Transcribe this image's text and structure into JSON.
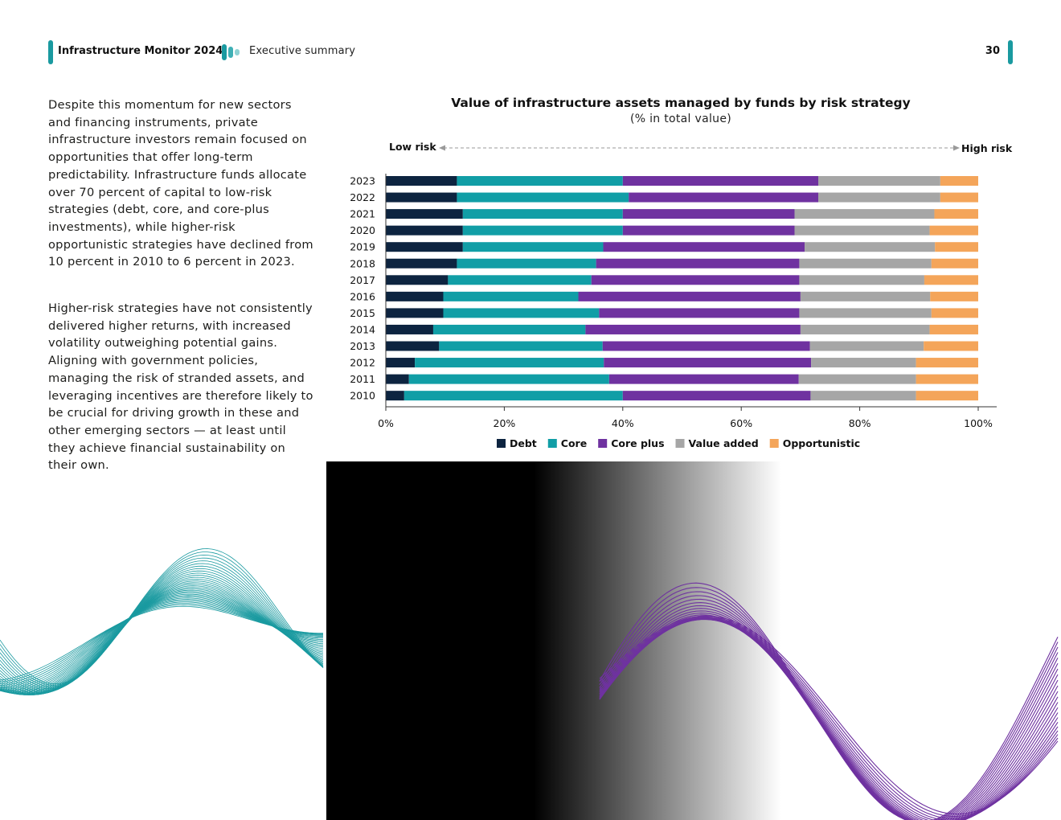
{
  "header": {
    "title": "Infrastructure Monitor 2024",
    "section": "Executive summary",
    "page_number": "30"
  },
  "body": {
    "paragraph1": "Despite this momentum for new sectors and financing instruments, private infrastructure investors remain focused on opportunities that offer long-term predictability. Infrastructure funds allocate over 70 percent of capital to low-risk strategies (debt, core, and core-plus investments), while higher-risk opportunistic strategies have declined from 10 percent in 2010 to 6 percent in 2023.",
    "paragraph2": "Higher-risk strategies have not consistently delivered higher returns, with increased volatility outweighing potential gains. Aligning with government policies, managing the risk of stranded assets, and leveraging incentives are therefore likely to be crucial for driving growth in these and other emerging sectors — at least until they achieve financial sustainability on their own."
  },
  "colors": {
    "accent": "#1a9aa0",
    "debt": "#0d2440",
    "core": "#119ea6",
    "core_plus": "#6f32a0",
    "value_added": "#a6a6a6",
    "opportunistic": "#f4a55a",
    "wave_teal": "#1a9aa0",
    "wave_purple": "#6f32a0"
  },
  "chart_data": {
    "type": "bar",
    "orientation": "horizontal",
    "stacked": true,
    "title": "Value of infrastructure assets managed by funds by risk strategy",
    "subtitle": "(% in total value)",
    "risk_axis": {
      "low_label": "Low risk",
      "high_label": "High risk"
    },
    "categories": [
      "2023",
      "2022",
      "2021",
      "2020",
      "2019",
      "2018",
      "2017",
      "2016",
      "2015",
      "2014",
      "2013",
      "2012",
      "2011",
      "2010"
    ],
    "series": [
      {
        "name": "Debt",
        "color_key": "debt",
        "values": [
          12,
          12,
          13,
          13,
          13,
          12,
          10.5,
          9.7,
          9.7,
          8,
          9,
          4.9,
          3.9,
          3.1
        ]
      },
      {
        "name": "Core",
        "color_key": "core",
        "values": [
          28,
          29,
          27,
          27,
          23.7,
          23.5,
          24.2,
          22.8,
          26.3,
          25.7,
          27.6,
          31.9,
          33.8,
          36.9
        ]
      },
      {
        "name": "Core plus",
        "color_key": "core_plus",
        "values": [
          33,
          32,
          29,
          29,
          34,
          34.3,
          35.1,
          37.5,
          33.8,
          36.3,
          35,
          35,
          32,
          31.7
        ]
      },
      {
        "name": "Value added",
        "color_key": "value_added",
        "values": [
          20.6,
          20.6,
          23.6,
          22.8,
          22,
          22.3,
          21.1,
          21.9,
          22.3,
          21.8,
          19.2,
          17.7,
          19.8,
          17.8
        ]
      },
      {
        "name": "Opportunistic",
        "color_key": "opportunistic",
        "values": [
          6.4,
          6.4,
          7.4,
          8.2,
          7.3,
          7.9,
          9.1,
          8.1,
          7.9,
          8.2,
          9.2,
          10.5,
          10.5,
          10.5
        ]
      }
    ],
    "xlim": [
      0,
      100
    ],
    "x_ticks": [
      "0%",
      "20%",
      "40%",
      "60%",
      "80%",
      "100%"
    ],
    "x_tick_values": [
      0,
      20,
      40,
      60,
      80,
      100
    ],
    "legend_position": "bottom",
    "grid": false
  }
}
